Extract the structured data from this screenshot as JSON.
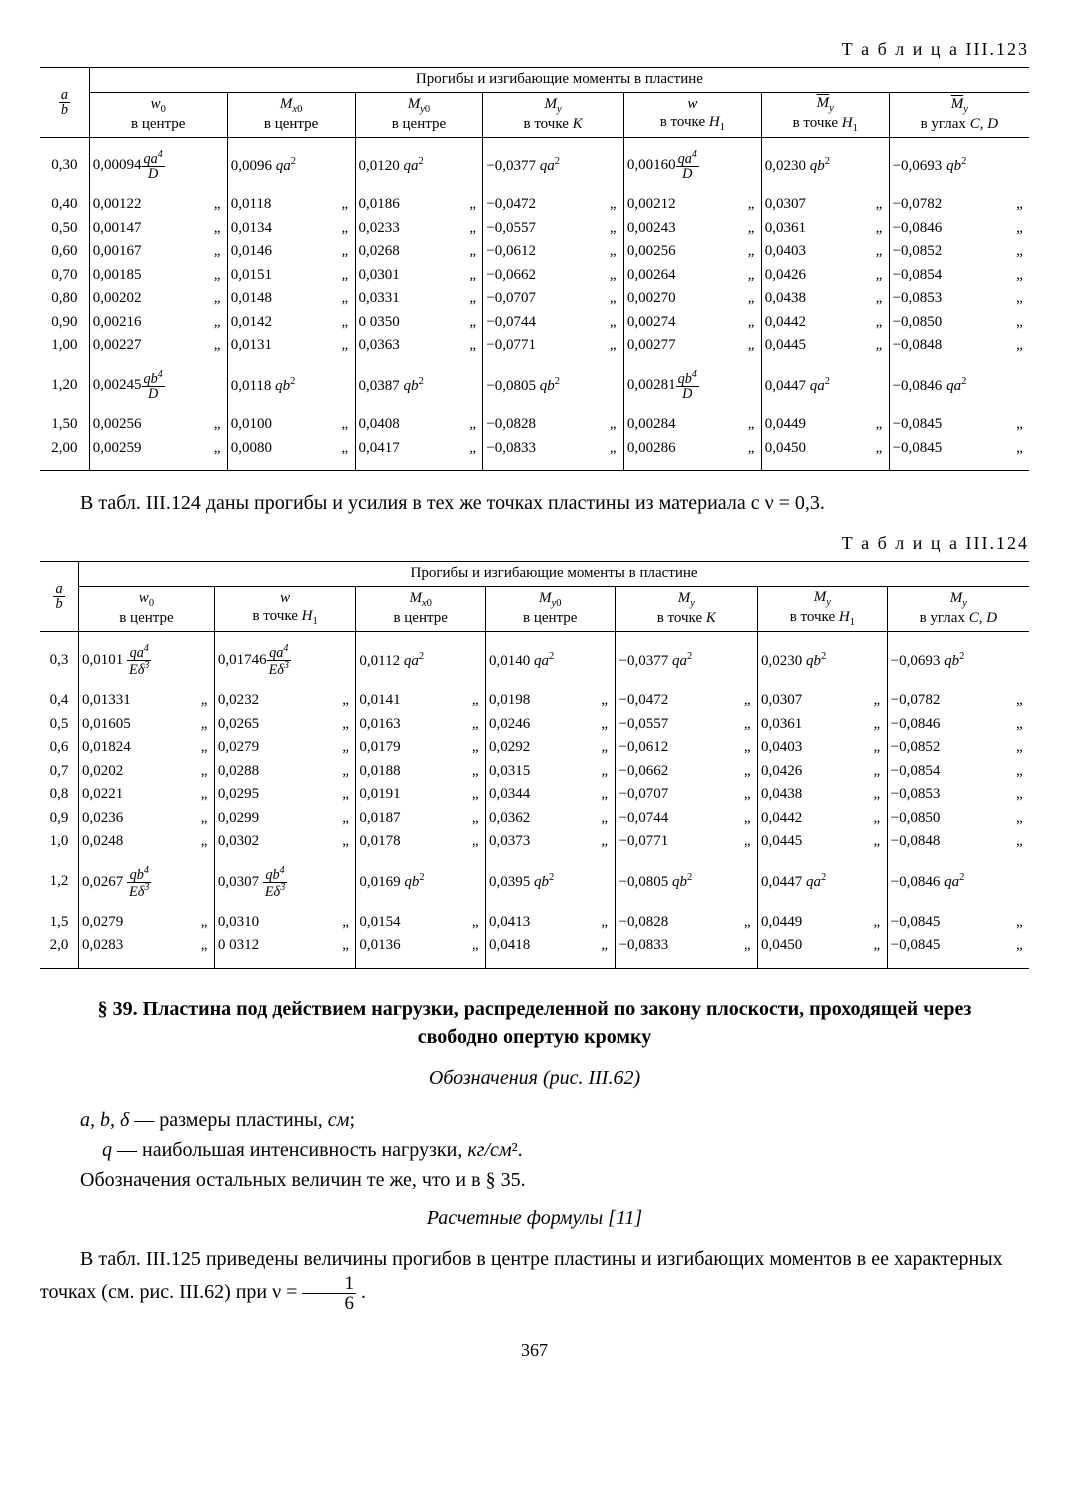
{
  "page_number": "367",
  "table123": {
    "caption": "Т а б л и ц а  III.123",
    "super_header": "Прогибы и изгибающие моменты в пластине",
    "ab_header": "a/b",
    "cols": [
      {
        "sym": "𝑤₀",
        "loc": "в центре"
      },
      {
        "sym": "𝑀ₓ₀",
        "loc": "в центре"
      },
      {
        "sym": "𝑀ᵧ₀",
        "loc": "в центре"
      },
      {
        "sym": "𝑀ᵧ",
        "loc": "в точке K"
      },
      {
        "sym": "𝑤",
        "loc": "в точке H₁"
      },
      {
        "sym": "M̄ᵧ",
        "loc": "в точке H₁"
      },
      {
        "sym": "M̄ᵧ",
        "loc": "в углах C, D"
      }
    ],
    "unit_row": {
      "ab": "0,30",
      "cells": [
        {
          "v": "0,00094",
          "unit": "qa⁴/D"
        },
        {
          "v": "0,0096",
          "unit": "qa²"
        },
        {
          "v": "0,0120",
          "unit": "qa²"
        },
        {
          "v": "−0,0377",
          "unit": "qa²"
        },
        {
          "v": "0,00160",
          "unit": "qa⁴/D"
        },
        {
          "v": "0,0230",
          "unit": "qb²"
        },
        {
          "v": "−0,0693",
          "unit": "qb²"
        }
      ]
    },
    "rows_mid": [
      {
        "ab": "0,40",
        "c": [
          "0,00122",
          "0,0118",
          "0,0186",
          "−0,0472",
          "0,00212",
          "0,0307",
          "−0,0782"
        ]
      },
      {
        "ab": "0,50",
        "c": [
          "0,00147",
          "0,0134",
          "0,0233",
          "−0,0557",
          "0,00243",
          "0,0361",
          "−0,0846"
        ]
      },
      {
        "ab": "0,60",
        "c": [
          "0,00167",
          "0,0146",
          "0,0268",
          "−0,0612",
          "0,00256",
          "0,0403",
          "−0,0852"
        ]
      },
      {
        "ab": "0,70",
        "c": [
          "0,00185",
          "0,0151",
          "0,0301",
          "−0,0662",
          "0,00264",
          "0,0426",
          "−0,0854"
        ]
      },
      {
        "ab": "0,80",
        "c": [
          "0,00202",
          "0,0148",
          "0,0331",
          "−0,0707",
          "0,00270",
          "0,0438",
          "−0,0853"
        ]
      },
      {
        "ab": "0,90",
        "c": [
          "0,00216",
          "0,0142",
          "0 0350",
          "−0,0744",
          "0,00274",
          "0,0442",
          "−0,0850"
        ]
      },
      {
        "ab": "1,00",
        "c": [
          "0,00227",
          "0,0131",
          "0,0363",
          "−0,0771",
          "0,00277",
          "0,0445",
          "−0,0848"
        ]
      }
    ],
    "unit_row2": {
      "ab": "1,20",
      "cells": [
        {
          "v": "0,00245",
          "unit": "qb⁴/D"
        },
        {
          "v": "0,0118",
          "unit": "qb²"
        },
        {
          "v": "0,0387",
          "unit": "qb²"
        },
        {
          "v": "−0,0805",
          "unit": "qb²"
        },
        {
          "v": "0,00281",
          "unit": "qb⁴/D"
        },
        {
          "v": "0,0447",
          "unit": "qa²"
        },
        {
          "v": "−0,0846",
          "unit": "qa²"
        }
      ]
    },
    "rows_bot": [
      {
        "ab": "1,50",
        "c": [
          "0,00256",
          "0,0100",
          "0,0408",
          "−0,0828",
          "0,00284",
          "0,0449",
          "−0,0845"
        ]
      },
      {
        "ab": "2,00",
        "c": [
          "0,00259",
          "0,0080",
          "0,0417",
          "−0,0833",
          "0,00286",
          "0,0450",
          "−0,0845"
        ]
      }
    ]
  },
  "para1": "В табл. III.124 даны прогибы и усилия в тех же точках пластины из материала с ν = 0,3.",
  "table124": {
    "caption": "Т а б л и ц а  III.124",
    "super_header": "Прогибы и изгибающие моменты в пластине",
    "ab_header": "a/b",
    "cols": [
      {
        "sym": "𝑤₀",
        "loc": "в центре"
      },
      {
        "sym": "𝑤",
        "loc": "в точке H₁"
      },
      {
        "sym": "𝑀ₓ₀",
        "loc": "в центре"
      },
      {
        "sym": "𝑀ᵧ₀",
        "loc": "в центре"
      },
      {
        "sym": "𝑀ᵧ",
        "loc": "в точке K"
      },
      {
        "sym": "𝑀ᵧ",
        "loc": "в точке H₁"
      },
      {
        "sym": "𝑀ᵧ",
        "loc": "в углах C, D"
      }
    ],
    "unit_row": {
      "ab": "0,3",
      "cells": [
        {
          "v": "0,0101",
          "unit": "qa⁴/Eδ³"
        },
        {
          "v": "0,01746",
          "unit": "qa⁴/Eδ³"
        },
        {
          "v": "0,0112",
          "unit": "qa²"
        },
        {
          "v": "0,0140",
          "unit": "qa²"
        },
        {
          "v": "−0,0377",
          "unit": "qa²"
        },
        {
          "v": "0,0230",
          "unit": "qb²"
        },
        {
          "v": "−0,0693",
          "unit": "qb²"
        }
      ]
    },
    "rows_mid": [
      {
        "ab": "0,4",
        "c": [
          "0,01331",
          "0,0232",
          "0,0141",
          "0,0198",
          "−0,0472",
          "0,0307",
          "−0,0782"
        ]
      },
      {
        "ab": "0,5",
        "c": [
          "0,01605",
          "0,0265",
          "0,0163",
          "0,0246",
          "−0,0557",
          "0,0361",
          "−0,0846"
        ]
      },
      {
        "ab": "0,6",
        "c": [
          "0,01824",
          "0,0279",
          "0,0179",
          "0,0292",
          "−0,0612",
          "0,0403",
          "−0,0852"
        ]
      },
      {
        "ab": "0,7",
        "c": [
          "0,0202",
          "0,0288",
          "0,0188",
          "0,0315",
          "−0,0662",
          "0,0426",
          "−0,0854"
        ]
      },
      {
        "ab": "0,8",
        "c": [
          "0,0221",
          "0,0295",
          "0,0191",
          "0,0344",
          "−0,0707",
          "0,0438",
          "−0,0853"
        ]
      },
      {
        "ab": "0,9",
        "c": [
          "0,0236",
          "0,0299",
          "0,0187",
          "0,0362",
          "−0,0744",
          "0,0442",
          "−0,0850"
        ]
      },
      {
        "ab": "1,0",
        "c": [
          "0,0248",
          "0,0302",
          "0,0178",
          "0,0373",
          "−0,0771",
          "0,0445",
          "−0,0848"
        ]
      }
    ],
    "unit_row2": {
      "ab": "1,2",
      "cells": [
        {
          "v": "0,0267",
          "unit": "qb⁴/Eδ³"
        },
        {
          "v": "0,0307",
          "unit": "qb⁴/Eδ³"
        },
        {
          "v": "0,0169",
          "unit": "qb²"
        },
        {
          "v": "0,0395",
          "unit": "qb²"
        },
        {
          "v": "−0,0805",
          "unit": "qb²"
        },
        {
          "v": "0,0447",
          "unit": "qa²"
        },
        {
          "v": "−0,0846",
          "unit": "qa²"
        }
      ]
    },
    "rows_bot": [
      {
        "ab": "1,5",
        "c": [
          "0,0279",
          "0,0310",
          "0,0154",
          "0,0413",
          "−0,0828",
          "0,0449",
          "−0,0845"
        ]
      },
      {
        "ab": "2,0",
        "c": [
          "0,0283",
          "0 0312",
          "0,0136",
          "0,0418",
          "−0,0833",
          "0,0450",
          "−0,0845"
        ]
      }
    ]
  },
  "section": {
    "title": "§ 39. Пластина под действием нагрузки, распределенной по закону плоскости, проходящей через свободно опертую кромку",
    "notation_title": "Обозначения (рис. III.62)",
    "defs": [
      "a, b, δ — размеры пластины, см;",
      "q — наибольшая интенсивность нагрузки, кг/см².",
      "Обозначения остальных величин те же, что и в § 35."
    ],
    "formulas_title": "Расчетные формулы [11]",
    "para2_pre": "В табл. III.125 приведены величины прогибов в центре пластины и изгибающих моментов в ее характерных точках (см. рис. III.62) при ν = ",
    "para2_frac_n": "1",
    "para2_frac_d": "6",
    "para2_post": " ."
  }
}
